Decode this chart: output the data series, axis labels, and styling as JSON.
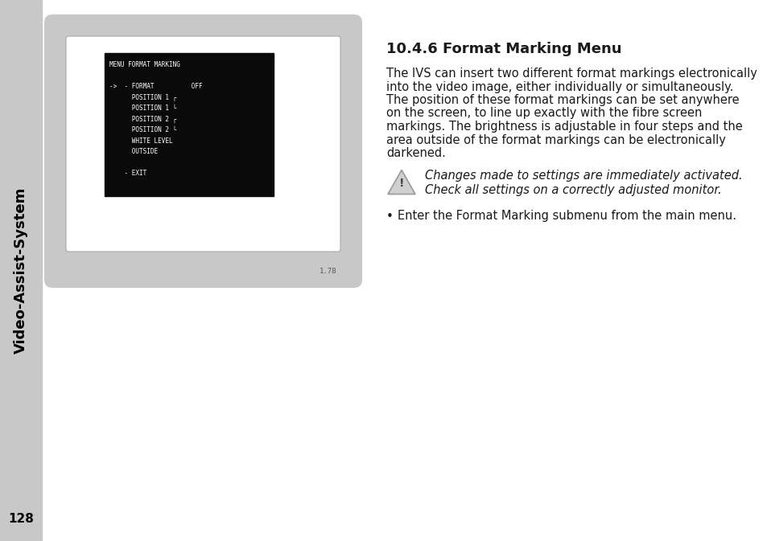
{
  "bg_color": "#ffffff",
  "left_bar_color": "#c8c8c8",
  "sidebar_text": "Video-Assist-System",
  "sidebar_text_color": "#000000",
  "page_number": "128",
  "monitor_outer_color": "#c8c8c8",
  "monitor_inner_color": "#ffffff",
  "monitor_screen_color": "#0a0a0a",
  "monitor_screen_text_color": "#ffffff",
  "monitor_label": "1.78",
  "screen_lines": [
    "MENU FORMAT MARKING",
    "",
    "->  - FORMAT          OFF",
    "      POSITION 1 ┌",
    "      POSITION 1 └",
    "      POSITION 2 ┌",
    "      POSITION 2 └",
    "      WHITE LEVEL",
    "      OUTSIDE",
    "",
    "    - EXIT"
  ],
  "title": "10.4.6 Format Marking Menu",
  "title_fontsize": 13,
  "body_text": "The IVS can insert two different format markings electronically\ninto the video image, either individually or simultaneously.\nThe position of these format markings can be set anywhere\non the screen, to line up exactly with the fibre screen\nmarkings. The brightness is adjustable in four steps and the\narea outside of the format markings can be electronically\ndarkened.",
  "body_fontsize": 10.5,
  "warning_italic_line1": "Changes made to settings are immediately activated.",
  "warning_italic_line2": "Check all settings on a correctly adjusted monitor.",
  "bullet_text": "Enter the Format Marking submenu from the main menu.",
  "warning_fontsize": 10.5,
  "text_color": "#1a1a1a"
}
